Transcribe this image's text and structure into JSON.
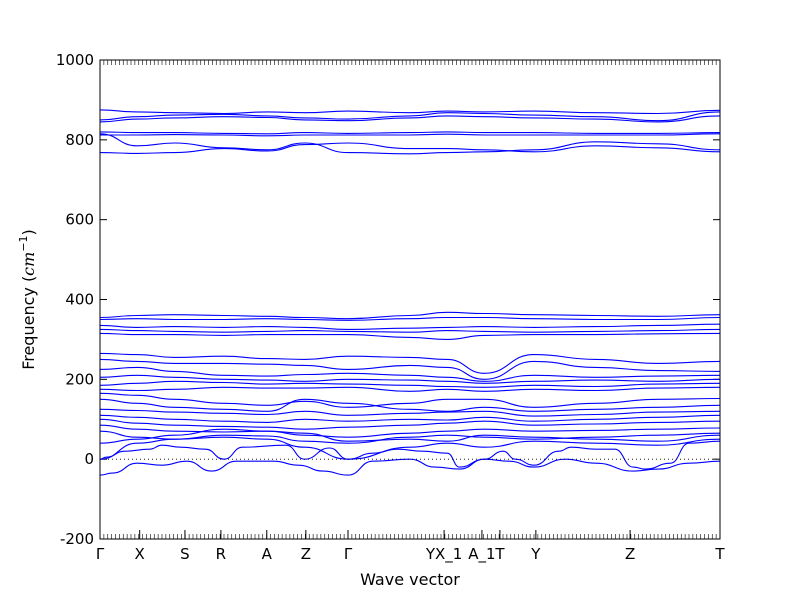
{
  "chart_data": {
    "type": "line",
    "title": "",
    "xlabel": "Wave vector",
    "ylabel_text": "Frequency (",
    "ylabel_unit": "cm",
    "ylabel_exp": "−1",
    "ylabel_close": ")",
    "ylim": [
      -200,
      1000
    ],
    "xlim": [
      0,
      1
    ],
    "yticks": [
      -200,
      0,
      200,
      400,
      600,
      800,
      1000
    ],
    "xticks": [
      {
        "label": "Γ",
        "x": 0.0
      },
      {
        "label": "X",
        "x": 0.064
      },
      {
        "label": "S",
        "x": 0.137
      },
      {
        "label": "R",
        "x": 0.195
      },
      {
        "label": "A",
        "x": 0.269
      },
      {
        "label": "Z",
        "x": 0.332
      },
      {
        "label": "Γ",
        "x": 0.4
      },
      {
        "label": "YX_1",
        "x": 0.555
      },
      {
        "label": "A_1",
        "x": 0.616
      },
      {
        "label": "T",
        "x": 0.645
      },
      {
        "label": "Y",
        "x": 0.703
      },
      {
        "label": "Z",
        "x": 0.855
      },
      {
        "label": "T",
        "x": 1.0
      }
    ],
    "grid": false,
    "line_color": "#0000ff",
    "zero_line_color": "#000000",
    "series": [
      {
        "x": [
          0,
          0.06,
          0.12,
          0.2,
          0.27,
          0.33,
          0.4,
          0.5,
          0.56,
          0.62,
          0.7,
          0.8,
          0.9,
          1.0
        ],
        "values": [
          875,
          870,
          868,
          866,
          870,
          868,
          872,
          868,
          872,
          870,
          872,
          868,
          866,
          874
        ]
      },
      {
        "x": [
          0,
          0.06,
          0.12,
          0.2,
          0.27,
          0.33,
          0.4,
          0.5,
          0.56,
          0.62,
          0.7,
          0.8,
          0.9,
          1.0
        ],
        "values": [
          850,
          858,
          862,
          864,
          860,
          855,
          852,
          860,
          868,
          866,
          862,
          858,
          848,
          870
        ]
      },
      {
        "x": [
          0,
          0.06,
          0.12,
          0.2,
          0.27,
          0.33,
          0.4,
          0.5,
          0.56,
          0.62,
          0.7,
          0.8,
          0.9,
          1.0
        ],
        "values": [
          845,
          852,
          855,
          858,
          856,
          850,
          848,
          855,
          860,
          858,
          855,
          852,
          845,
          860
        ]
      },
      {
        "x": [
          0,
          0.06,
          0.12,
          0.2,
          0.27,
          0.33,
          0.4,
          0.5,
          0.56,
          0.62,
          0.7,
          0.8,
          0.9,
          1.0
        ],
        "values": [
          820,
          818,
          818,
          816,
          815,
          818,
          816,
          818,
          820,
          818,
          818,
          816,
          816,
          818
        ]
      },
      {
        "x": [
          0,
          0.06,
          0.12,
          0.2,
          0.27,
          0.33,
          0.4,
          0.5,
          0.56,
          0.62,
          0.7,
          0.8,
          0.9,
          1.0
        ],
        "values": [
          812,
          812,
          813,
          812,
          810,
          812,
          812,
          812,
          814,
          812,
          812,
          812,
          812,
          815
        ]
      },
      {
        "x": [
          0,
          0.06,
          0.12,
          0.2,
          0.27,
          0.33,
          0.4,
          0.5,
          0.56,
          0.62,
          0.7,
          0.8,
          0.9,
          1.0
        ],
        "values": [
          815,
          785,
          792,
          780,
          775,
          792,
          768,
          765,
          768,
          770,
          775,
          795,
          790,
          775
        ]
      },
      {
        "x": [
          0,
          0.06,
          0.12,
          0.2,
          0.27,
          0.33,
          0.4,
          0.5,
          0.56,
          0.62,
          0.7,
          0.8,
          0.9,
          1.0
        ],
        "values": [
          768,
          766,
          768,
          778,
          772,
          788,
          792,
          778,
          778,
          775,
          770,
          785,
          780,
          770
        ]
      },
      {
        "x": [
          0,
          0.06,
          0.12,
          0.2,
          0.27,
          0.33,
          0.4,
          0.5,
          0.56,
          0.62,
          0.7,
          0.8,
          0.9,
          1.0
        ],
        "values": [
          355,
          360,
          362,
          360,
          358,
          355,
          352,
          360,
          368,
          365,
          362,
          360,
          358,
          362
        ]
      },
      {
        "x": [
          0,
          0.06,
          0.12,
          0.2,
          0.27,
          0.33,
          0.4,
          0.5,
          0.56,
          0.62,
          0.7,
          0.8,
          0.9,
          1.0
        ],
        "values": [
          350,
          352,
          350,
          350,
          352,
          350,
          348,
          352,
          355,
          355,
          352,
          350,
          350,
          355
        ]
      },
      {
        "x": [
          0,
          0.06,
          0.12,
          0.2,
          0.27,
          0.33,
          0.4,
          0.5,
          0.56,
          0.62,
          0.7,
          0.8,
          0.9,
          1.0
        ],
        "values": [
          335,
          330,
          332,
          330,
          332,
          330,
          325,
          328,
          330,
          332,
          330,
          332,
          335,
          338
        ]
      },
      {
        "x": [
          0,
          0.06,
          0.12,
          0.2,
          0.27,
          0.33,
          0.4,
          0.5,
          0.56,
          0.62,
          0.7,
          0.8,
          0.9,
          1.0
        ],
        "values": [
          325,
          322,
          320,
          318,
          320,
          322,
          320,
          318,
          322,
          320,
          318,
          320,
          322,
          325
        ]
      },
      {
        "x": [
          0,
          0.06,
          0.12,
          0.2,
          0.27,
          0.33,
          0.4,
          0.5,
          0.56,
          0.62,
          0.7,
          0.8,
          0.9,
          1.0
        ],
        "values": [
          315,
          312,
          312,
          310,
          312,
          312,
          312,
          305,
          300,
          310,
          312,
          312,
          314,
          315
        ]
      },
      {
        "x": [
          0,
          0.06,
          0.12,
          0.2,
          0.27,
          0.33,
          0.4,
          0.5,
          0.56,
          0.62,
          0.7,
          0.8,
          0.9,
          1.0
        ],
        "values": [
          265,
          262,
          255,
          258,
          252,
          250,
          258,
          255,
          250,
          215,
          262,
          250,
          240,
          245
        ]
      },
      {
        "x": [
          0,
          0.06,
          0.12,
          0.2,
          0.27,
          0.33,
          0.4,
          0.5,
          0.56,
          0.62,
          0.7,
          0.8,
          0.9,
          1.0
        ],
        "values": [
          250,
          245,
          240,
          240,
          238,
          235,
          225,
          235,
          230,
          200,
          245,
          230,
          222,
          220
        ]
      },
      {
        "x": [
          0,
          0.06,
          0.12,
          0.2,
          0.27,
          0.33,
          0.4,
          0.5,
          0.56,
          0.62,
          0.7,
          0.8,
          0.9,
          1.0
        ],
        "values": [
          225,
          230,
          220,
          210,
          208,
          212,
          215,
          210,
          205,
          195,
          210,
          205,
          208,
          210
        ]
      },
      {
        "x": [
          0,
          0.06,
          0.12,
          0.2,
          0.27,
          0.33,
          0.4,
          0.5,
          0.56,
          0.62,
          0.7,
          0.8,
          0.9,
          1.0
        ],
        "values": [
          205,
          210,
          205,
          200,
          198,
          195,
          200,
          198,
          195,
          190,
          195,
          198,
          195,
          200
        ]
      },
      {
        "x": [
          0,
          0.06,
          0.12,
          0.2,
          0.27,
          0.33,
          0.4,
          0.5,
          0.56,
          0.62,
          0.7,
          0.8,
          0.9,
          1.0
        ],
        "values": [
          185,
          190,
          195,
          192,
          188,
          190,
          188,
          185,
          182,
          180,
          185,
          182,
          188,
          190
        ]
      },
      {
        "x": [
          0,
          0.06,
          0.12,
          0.2,
          0.27,
          0.33,
          0.4,
          0.5,
          0.56,
          0.62,
          0.7,
          0.8,
          0.9,
          1.0
        ],
        "values": [
          175,
          172,
          175,
          180,
          178,
          178,
          180,
          170,
          175,
          170,
          175,
          172,
          178,
          180
        ]
      },
      {
        "x": [
          0,
          0.06,
          0.12,
          0.2,
          0.27,
          0.33,
          0.4,
          0.5,
          0.56,
          0.62,
          0.7,
          0.8,
          0.9,
          1.0
        ],
        "values": [
          165,
          160,
          150,
          140,
          135,
          145,
          130,
          140,
          150,
          150,
          130,
          140,
          150,
          152
        ]
      },
      {
        "x": [
          0,
          0.06,
          0.12,
          0.2,
          0.27,
          0.33,
          0.4,
          0.5,
          0.56,
          0.62,
          0.7,
          0.8,
          0.9,
          1.0
        ],
        "values": [
          150,
          140,
          130,
          125,
          120,
          150,
          140,
          125,
          120,
          130,
          120,
          125,
          130,
          135
        ]
      },
      {
        "x": [
          0,
          0.06,
          0.12,
          0.2,
          0.27,
          0.33,
          0.4,
          0.5,
          0.56,
          0.62,
          0.7,
          0.8,
          0.9,
          1.0
        ],
        "values": [
          125,
          122,
          118,
          115,
          112,
          120,
          110,
          115,
          118,
          120,
          108,
          112,
          118,
          120
        ]
      },
      {
        "x": [
          0,
          0.06,
          0.12,
          0.2,
          0.27,
          0.33,
          0.4,
          0.5,
          0.56,
          0.62,
          0.7,
          0.8,
          0.9,
          1.0
        ],
        "values": [
          110,
          105,
          100,
          95,
          92,
          100,
          95,
          100,
          98,
          105,
          95,
          100,
          105,
          110
        ]
      },
      {
        "x": [
          0,
          0.06,
          0.12,
          0.2,
          0.27,
          0.33,
          0.4,
          0.5,
          0.56,
          0.62,
          0.7,
          0.8,
          0.9,
          1.0
        ],
        "values": [
          100,
          90,
          85,
          82,
          80,
          75,
          80,
          85,
          90,
          95,
          85,
          88,
          92,
          95
        ]
      },
      {
        "x": [
          0,
          0.06,
          0.12,
          0.2,
          0.27,
          0.33,
          0.4,
          0.5,
          0.56,
          0.62,
          0.7,
          0.8,
          0.9,
          1.0
        ],
        "values": [
          85,
          75,
          70,
          68,
          70,
          60,
          55,
          65,
          70,
          75,
          70,
          72,
          75,
          78
        ]
      },
      {
        "x": [
          0,
          0.06,
          0.12,
          0.2,
          0.27,
          0.33,
          0.4,
          0.5,
          0.56,
          0.62,
          0.7,
          0.8,
          0.9,
          1.0
        ],
        "values": [
          70,
          55,
          50,
          60,
          58,
          45,
          40,
          55,
          60,
          55,
          50,
          55,
          60,
          65
        ]
      },
      {
        "x": [
          0,
          0.06,
          0.12,
          0.2,
          0.27,
          0.33,
          0.4,
          0.5,
          0.56,
          0.62,
          0.7,
          0.8,
          0.9,
          1.0
        ],
        "values": [
          40,
          50,
          60,
          75,
          70,
          65,
          45,
          50,
          45,
          60,
          55,
          50,
          45,
          60
        ]
      },
      {
        "x": [
          0,
          0.06,
          0.12,
          0.2,
          0.27,
          0.33,
          0.4,
          0.5,
          0.56,
          0.62,
          0.7,
          0.8,
          0.9,
          1.0
        ],
        "values": [
          0,
          40,
          50,
          55,
          50,
          30,
          0,
          30,
          40,
          30,
          45,
          40,
          35,
          50
        ]
      },
      {
        "x": [
          0,
          0.01,
          0.04,
          0.08,
          0.1,
          0.13,
          0.17,
          0.2,
          0.23,
          0.3,
          0.33,
          0.37,
          0.4,
          0.44,
          0.48,
          0.52,
          0.56,
          0.58,
          0.62,
          0.65,
          0.67,
          0.7,
          0.74,
          0.76,
          0.8,
          0.83,
          0.86,
          0.88,
          0.92,
          0.95,
          1.0
        ],
        "values": [
          0,
          5,
          20,
          25,
          35,
          30,
          25,
          0,
          30,
          35,
          0,
          28,
          0,
          15,
          25,
          20,
          15,
          -20,
          0,
          20,
          0,
          -15,
          20,
          30,
          25,
          25,
          -20,
          -25,
          -10,
          40,
          45
        ]
      },
      {
        "x": [
          0,
          0.02,
          0.06,
          0.1,
          0.14,
          0.18,
          0.22,
          0.28,
          0.32,
          0.36,
          0.4,
          0.44,
          0.5,
          0.54,
          0.58,
          0.62,
          0.66,
          0.7,
          0.75,
          0.8,
          0.86,
          0.9,
          0.95,
          1.0
        ],
        "values": [
          -40,
          -35,
          -10,
          -15,
          -5,
          -30,
          -5,
          -5,
          -15,
          -30,
          -40,
          -5,
          0,
          -20,
          -25,
          0,
          -5,
          -20,
          0,
          -10,
          -30,
          -25,
          -10,
          -5
        ]
      }
    ]
  }
}
